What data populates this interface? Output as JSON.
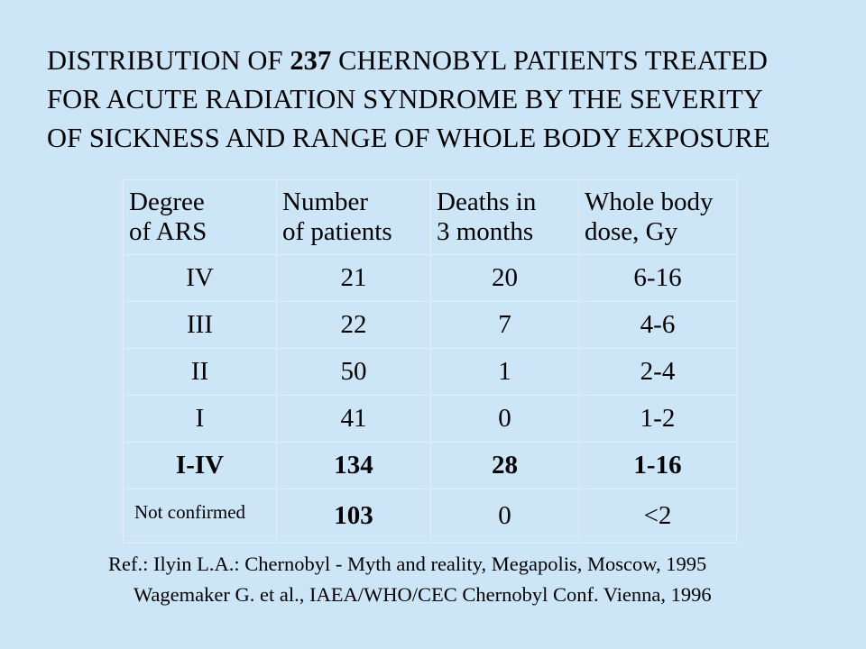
{
  "title": {
    "line1_prefix": "DISTRIBUTION OF ",
    "line1_number": "237",
    "line1_suffix": " CHERNOBYL PATIENTS TREATED",
    "line2": "FOR ACUTE RADIATION SYNDROME BY THE SEVERITY",
    "line3": "OF SICKNESS AND RANGE OF WHOLE BODY EXPOSURE"
  },
  "table": {
    "headers": [
      {
        "line1": "Degree",
        "line2": "of ARS"
      },
      {
        "line1": "Number",
        "line2": "of patients"
      },
      {
        "line1": "Deaths in",
        "line2": "3 months"
      },
      {
        "line1": "Whole body",
        "line2": "dose,  Gy"
      }
    ],
    "rows": [
      {
        "degree": "IV",
        "patients": "21",
        "deaths": "20",
        "dose": "6-16"
      },
      {
        "degree": "III",
        "patients": "22",
        "deaths": "7",
        "dose": "4-6"
      },
      {
        "degree": "II",
        "patients": "50",
        "deaths": "1",
        "dose": "2-4"
      },
      {
        "degree": "I",
        "patients": "41",
        "deaths": "0",
        "dose": "1-2"
      },
      {
        "degree": "I-IV",
        "patients": "134",
        "deaths": "28",
        "dose": "1-16"
      },
      {
        "degree": "Not confirmed",
        "patients": "103",
        "deaths": "0",
        "dose": "<2"
      }
    ]
  },
  "references": {
    "line1": "Ref.: Ilyin L.A.: Chernobyl - Myth and reality, Megapolis, Moscow, 1995",
    "line2": "Wagemaker G. et al., IAEA/WHO/CEC Chernobyl Conf. Vienna, 1996"
  }
}
